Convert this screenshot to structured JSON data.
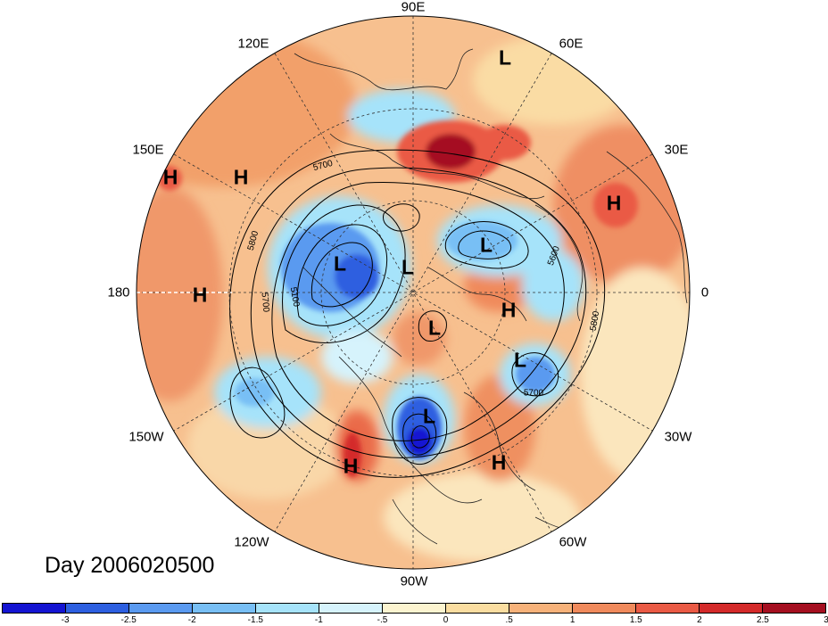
{
  "title": "Day 2006020500",
  "longitude_labels": [
    "90E",
    "60E",
    "30E",
    "0",
    "30W",
    "60W",
    "90W",
    "120W",
    "150W",
    "180",
    "150E",
    "120E"
  ],
  "pressure_centers": [
    {
      "label": "L",
      "id": "siberia-north"
    },
    {
      "label": "H",
      "id": "pacific-west"
    },
    {
      "label": "H",
      "id": "pacific-east"
    },
    {
      "label": "H",
      "id": "europe"
    },
    {
      "label": "L",
      "id": "kara"
    },
    {
      "label": "L",
      "id": "bering"
    },
    {
      "label": "L",
      "id": "arctic"
    },
    {
      "label": "H",
      "id": "dateline"
    },
    {
      "label": "H",
      "id": "greenland-sea"
    },
    {
      "label": "L",
      "id": "baffin"
    },
    {
      "label": "L",
      "id": "north-atlantic"
    },
    {
      "label": "L",
      "id": "east-us"
    },
    {
      "label": "H",
      "id": "west-us"
    },
    {
      "label": "H",
      "id": "atlantic"
    }
  ],
  "contour_labels": [
    "5700",
    "5800",
    "5100",
    "5700",
    "5600",
    "5800",
    "5700"
  ],
  "colorbar": {
    "colors": [
      "#1414d2",
      "#2d5fe0",
      "#5a9af0",
      "#78bff5",
      "#a6e3fa",
      "#d6f3fc",
      "#fcf4d0",
      "#fadda0",
      "#f7b27a",
      "#f08a5c",
      "#ea5a45",
      "#d42a2a",
      "#a50f20"
    ],
    "ticks": [
      "-3",
      "-2.5",
      "-2",
      "-1.5",
      "-1",
      "-.5",
      "0",
      ".5",
      "1",
      "1.5",
      "2",
      "2.5",
      "3"
    ]
  }
}
